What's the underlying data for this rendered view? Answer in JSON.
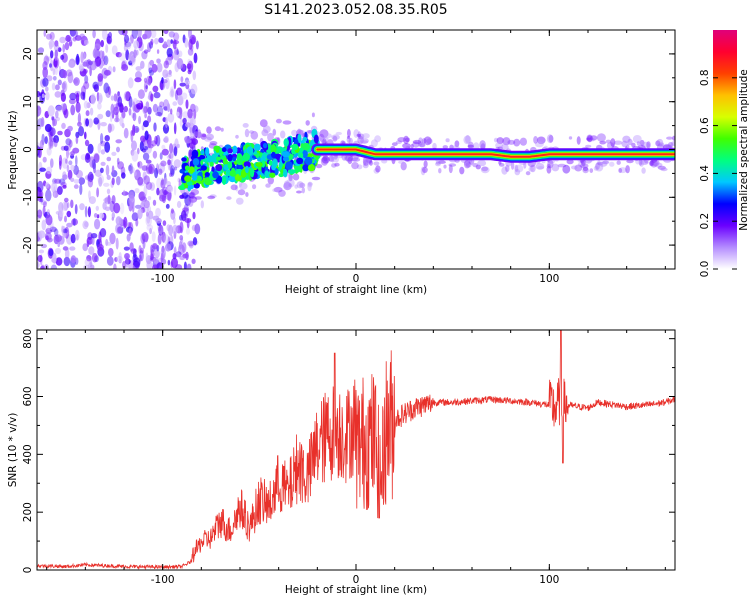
{
  "title": "S141.2023.052.08.35.R05",
  "chart_data": [
    {
      "type": "heatmap",
      "xlabel": "Height of straight line (km)",
      "ylabel": "Frequency (Hz)",
      "xlim": [
        -165,
        165
      ],
      "ylim": [
        -25,
        25
      ],
      "xticks": [
        -100,
        0,
        100
      ],
      "yticks": [
        -20,
        -10,
        0,
        10,
        20
      ],
      "colorbar": {
        "label": "Normalized spectral amplitude",
        "range": [
          0,
          1
        ],
        "ticks": [
          "0.0",
          "0.2",
          "0.4",
          "0.6",
          "0.8"
        ],
        "colors": [
          "#ffffff",
          "#b48cff",
          "#6a00ff",
          "#0000ff",
          "#00c8ff",
          "#00ff80",
          "#40ff00",
          "#d8ff00",
          "#ffc000",
          "#ff4000",
          "#ff0030",
          "#e0007a"
        ]
      },
      "ridge": {
        "x": [
          -90,
          -80,
          -70,
          -60,
          -50,
          -40,
          -30,
          -20,
          -10,
          0,
          10,
          20,
          40,
          60,
          70,
          80,
          90,
          100,
          120,
          140,
          165
        ],
        "y": [
          -5,
          -4,
          -3,
          -3,
          -2,
          -2,
          -1,
          0,
          0,
          0,
          -1,
          -1,
          -1,
          -1,
          -1,
          -1.5,
          -1.5,
          -1,
          -1,
          -1,
          -1
        ]
      },
      "noise_region_x": [
        -165,
        -90
      ]
    },
    {
      "type": "line",
      "xlabel": "Height of straight line (km)",
      "ylabel": "SNR (10 * v/v)",
      "xlim": [
        -165,
        165
      ],
      "ylim": [
        0,
        830
      ],
      "xticks": [
        -100,
        0,
        100
      ],
      "yticks": [
        0,
        200,
        400,
        600,
        800
      ],
      "color": "#e8302a",
      "series": [
        {
          "x": [
            -165,
            -150,
            -140,
            -120,
            -100,
            -90,
            -85,
            -80,
            -75,
            -70,
            -65,
            -60,
            -55,
            -50,
            -45,
            -40,
            -35,
            -30,
            -25,
            -20,
            -15,
            -10,
            -5,
            0,
            5,
            10,
            13,
            15,
            20,
            25,
            30,
            40,
            50,
            60,
            70,
            80,
            90,
            95,
            100,
            103,
            106,
            108,
            110,
            120,
            125,
            130,
            140,
            150,
            160,
            165
          ],
          "y": [
            15,
            12,
            18,
            12,
            10,
            12,
            30,
            80,
            90,
            140,
            110,
            180,
            120,
            200,
            180,
            250,
            220,
            300,
            260,
            350,
            380,
            400,
            380,
            420,
            450,
            450,
            300,
            480,
            520,
            540,
            560,
            580,
            580,
            585,
            590,
            585,
            580,
            575,
            570,
            560,
            590,
            570,
            570,
            560,
            580,
            575,
            565,
            570,
            580,
            590
          ]
        }
      ]
    }
  ]
}
